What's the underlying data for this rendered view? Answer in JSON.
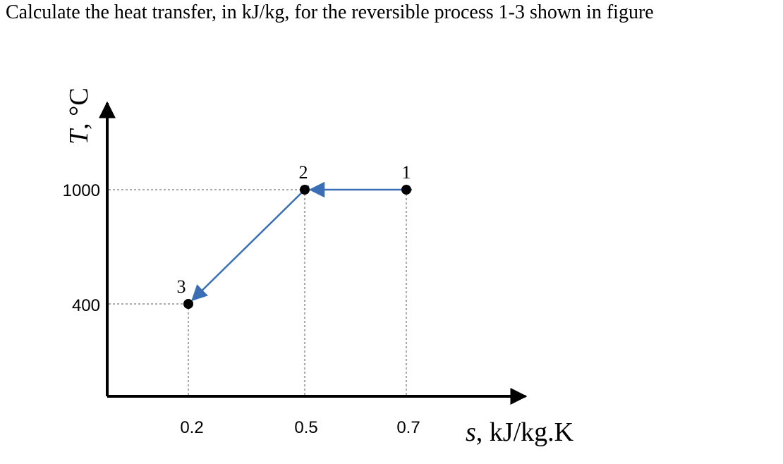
{
  "question": "Calculate the heat transfer, in kJ/kg, for the reversible process 1-3 shown in figure",
  "colors": {
    "path": "#3a6fb5",
    "axis": "#000000",
    "point": "#000000",
    "guide": "#555555"
  },
  "chart_data": {
    "type": "line",
    "xlabel_var": "s",
    "xlabel_unit": ", kJ/kg.K",
    "ylabel_var": "T",
    "ylabel_unit": ", °C",
    "x_ticks": [
      "0.2",
      "0.5",
      "0.7"
    ],
    "y_ticks": [
      "400",
      "1000"
    ],
    "points": [
      {
        "label": "1",
        "s": 0.7,
        "T": 1000
      },
      {
        "label": "2",
        "s": 0.5,
        "T": 1000
      },
      {
        "label": "3",
        "s": 0.2,
        "T": 400
      }
    ],
    "process": [
      "1",
      "2",
      "3"
    ],
    "grid": false
  }
}
